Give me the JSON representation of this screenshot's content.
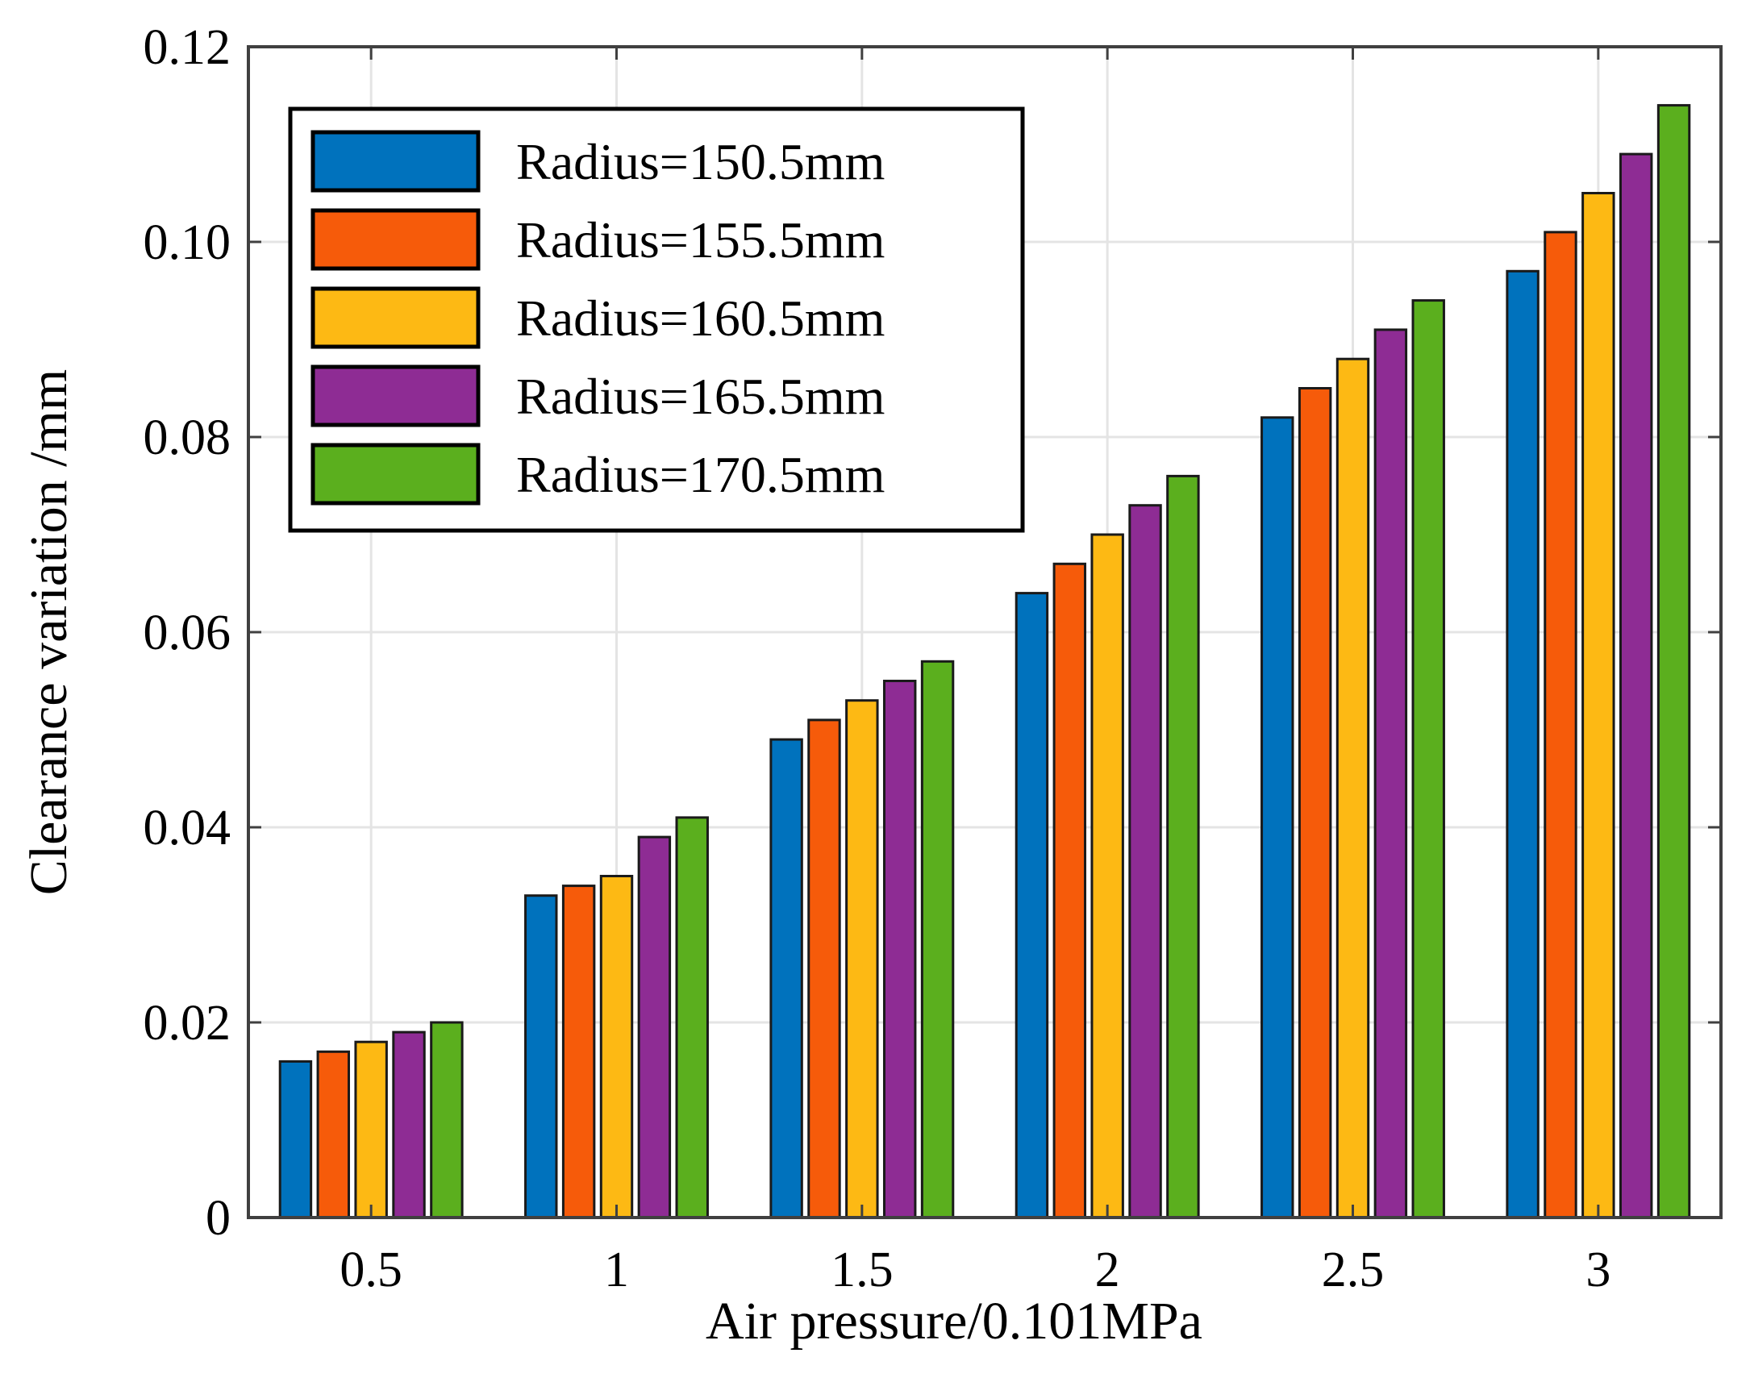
{
  "chart_data": {
    "type": "bar",
    "xlabel": "Air pressure/0.101MPa",
    "ylabel": "Clearance variation /mm",
    "categories": [
      "0.5",
      "1",
      "1.5",
      "2",
      "2.5",
      "3"
    ],
    "ylim": [
      0,
      0.12
    ],
    "yticks": [
      "0",
      "0.02",
      "0.04",
      "0.06",
      "0.08",
      "0.10",
      "0.12"
    ],
    "grid": true,
    "legend_position": "top-left",
    "series": [
      {
        "name": "Radius=150.5mm",
        "color": "#0072BD",
        "values": [
          0.016,
          0.033,
          0.049,
          0.064,
          0.082,
          0.097
        ]
      },
      {
        "name": "Radius=155.5mm",
        "color": "#F65B0A",
        "values": [
          0.017,
          0.034,
          0.051,
          0.067,
          0.085,
          0.101
        ]
      },
      {
        "name": "Radius=160.5mm",
        "color": "#FDB914",
        "values": [
          0.018,
          0.035,
          0.053,
          0.07,
          0.088,
          0.105
        ]
      },
      {
        "name": "Radius=165.5mm",
        "color": "#8E2C94",
        "values": [
          0.019,
          0.039,
          0.055,
          0.073,
          0.091,
          0.109
        ]
      },
      {
        "name": "Radius=170.5mm",
        "color": "#5BAF1E",
        "values": [
          0.02,
          0.041,
          0.057,
          0.076,
          0.094,
          0.114
        ]
      }
    ]
  }
}
